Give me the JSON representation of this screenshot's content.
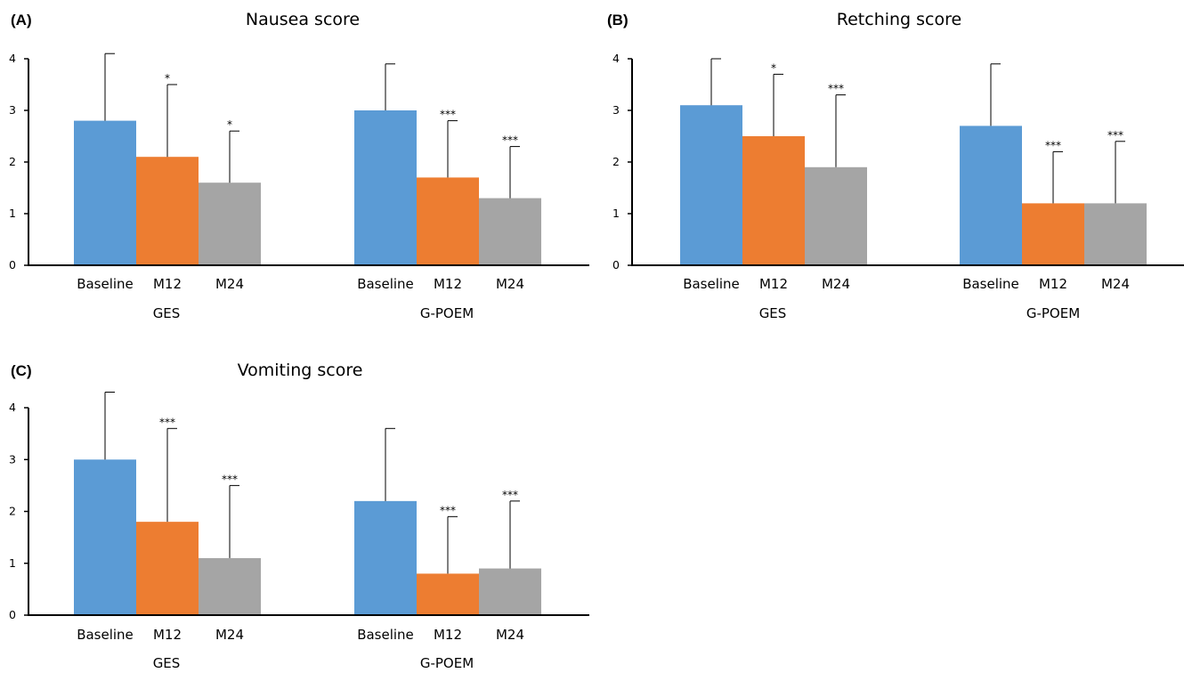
{
  "chart_data": [
    {
      "panel": "(A)",
      "type": "bar",
      "title": "Nausea score",
      "ylim": [
        0,
        4
      ],
      "yticks": [
        "0",
        "1",
        "2",
        "3",
        "4"
      ],
      "groups": [
        "GES",
        "G-POEM"
      ],
      "categories": [
        "Baseline",
        "M12",
        "M24"
      ],
      "colors": [
        "#5b9bd5",
        "#ed7d31",
        "#a5a5a5"
      ],
      "values": [
        [
          2.8,
          2.1,
          1.6
        ],
        [
          3.0,
          1.7,
          1.3
        ]
      ],
      "error_top": [
        [
          4.1,
          3.5,
          2.6
        ],
        [
          3.9,
          2.8,
          2.3
        ]
      ],
      "significance": [
        [
          "",
          "*",
          "*"
        ],
        [
          "",
          "***",
          "***"
        ]
      ]
    },
    {
      "panel": "(B)",
      "type": "bar",
      "title": "Retching score",
      "ylim": [
        0,
        4
      ],
      "yticks": [
        "0",
        "1",
        "2",
        "3",
        "4"
      ],
      "groups": [
        "GES",
        "G-POEM"
      ],
      "categories": [
        "Baseline",
        "M12",
        "M24"
      ],
      "colors": [
        "#5b9bd5",
        "#ed7d31",
        "#a5a5a5"
      ],
      "values": [
        [
          3.1,
          2.5,
          1.9
        ],
        [
          2.7,
          1.2,
          1.2
        ]
      ],
      "error_top": [
        [
          4.0,
          3.7,
          3.3
        ],
        [
          3.9,
          2.2,
          2.4
        ]
      ],
      "significance": [
        [
          "",
          "*",
          "***"
        ],
        [
          "",
          "***",
          "***"
        ]
      ]
    },
    {
      "panel": "(C)",
      "type": "bar",
      "title": "Vomiting score",
      "ylim": [
        0,
        4
      ],
      "yticks": [
        "0",
        "1",
        "2",
        "3",
        "4"
      ],
      "groups": [
        "GES",
        "G-POEM"
      ],
      "categories": [
        "Baseline",
        "M12",
        "M24"
      ],
      "colors": [
        "#5b9bd5",
        "#ed7d31",
        "#a5a5a5"
      ],
      "values": [
        [
          3.0,
          1.8,
          1.1
        ],
        [
          2.2,
          0.8,
          0.9
        ]
      ],
      "error_top": [
        [
          4.3,
          3.6,
          2.5
        ],
        [
          3.6,
          1.9,
          2.2
        ]
      ],
      "significance": [
        [
          "",
          "***",
          "***"
        ],
        [
          "",
          "***",
          "***"
        ]
      ]
    }
  ]
}
